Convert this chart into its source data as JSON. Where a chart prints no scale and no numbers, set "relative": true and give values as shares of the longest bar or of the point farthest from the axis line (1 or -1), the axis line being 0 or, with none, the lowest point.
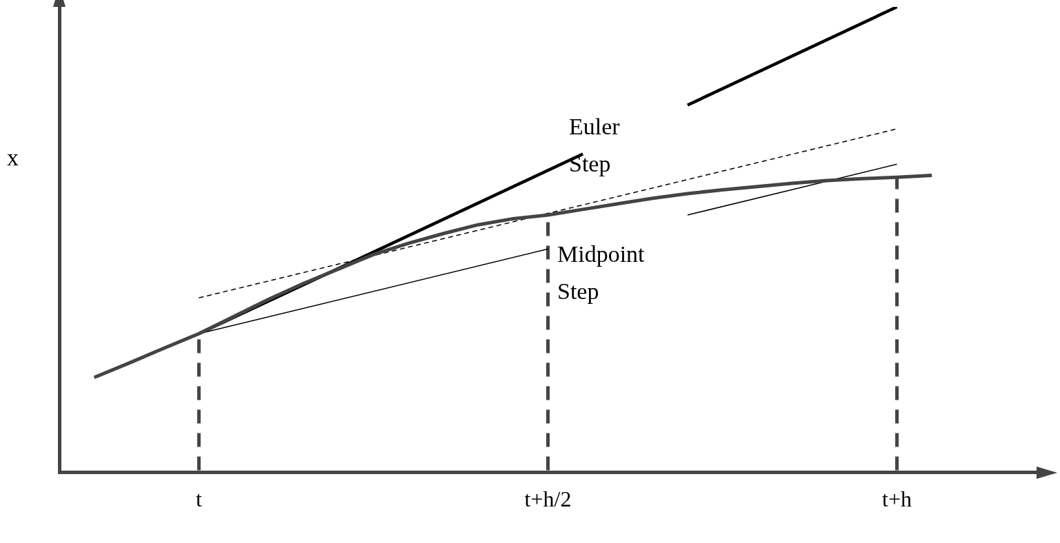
{
  "chart_data": {
    "type": "line",
    "relative": true,
    "ylabel": "x",
    "categories": [
      null,
      null,
      null,
      null,
      "t",
      null,
      null,
      null,
      null,
      null,
      null,
      null,
      null,
      null,
      "t+h/2",
      null,
      null,
      null,
      null,
      null,
      null,
      null,
      null,
      null,
      "t+h",
      null,
      null,
      null,
      null
    ],
    "grid": false,
    "legend": false,
    "marker": "none",
    "series": [
      {
        "color": "#444444",
        "line_style": "solid",
        "values": [
          null,
          0.204,
          0.235,
          0.267,
          0.298,
          0.335,
          0.372,
          0.406,
          0.437,
          0.468,
          0.492,
          0.513,
          0.532,
          0.545,
          0.553,
          0.565,
          0.577,
          0.589,
          0.599,
          0.607,
          0.614,
          0.621,
          0.627,
          0.631,
          0.634,
          0.638,
          null,
          null,
          null
        ]
      },
      {
        "color": "#000000",
        "line_style": "solid",
        "values": [
          null,
          null,
          null,
          null,
          0.298,
          null,
          null,
          null,
          null,
          null,
          null,
          null,
          null,
          null,
          null,
          0.684,
          null,
          null,
          null,
          null,
          null,
          null,
          null,
          null,
          null,
          null,
          null,
          null,
          null
        ]
      },
      {
        "color": "#000000",
        "line_style": "solid",
        "values": [
          null,
          null,
          null,
          null,
          null,
          null,
          null,
          null,
          null,
          null,
          null,
          null,
          null,
          null,
          null,
          null,
          null,
          null,
          0.789,
          null,
          null,
          null,
          null,
          null,
          1.0,
          null,
          null,
          null,
          null
        ]
      },
      {
        "color": "#000000",
        "line_style": "dashed",
        "values": [
          null,
          null,
          null,
          null,
          0.375,
          null,
          null,
          null,
          null,
          null,
          null,
          null,
          null,
          null,
          null,
          null,
          null,
          null,
          null,
          null,
          null,
          null,
          null,
          null,
          0.738,
          null,
          null,
          null,
          null
        ]
      },
      {
        "color": "#000000",
        "line_style": "solid",
        "values": [
          null,
          null,
          null,
          null,
          0.298,
          null,
          null,
          null,
          null,
          null,
          null,
          null,
          null,
          null,
          0.48,
          null,
          null,
          null,
          null,
          null,
          null,
          null,
          null,
          null,
          null,
          null,
          null,
          null,
          null
        ]
      },
      {
        "color": "#000000",
        "line_style": "solid",
        "values": [
          null,
          null,
          null,
          null,
          null,
          null,
          null,
          null,
          null,
          null,
          null,
          null,
          null,
          null,
          null,
          null,
          null,
          null,
          0.553,
          null,
          null,
          null,
          null,
          null,
          0.662,
          null,
          null,
          null,
          null
        ]
      }
    ],
    "ref_lines": [
      {
        "axis": "x",
        "value": "t",
        "color": "#444444",
        "line_style": "dashed"
      },
      {
        "axis": "x",
        "value": "t+h/2",
        "color": "#444444",
        "line_style": "dashed"
      },
      {
        "axis": "x",
        "value": "t+h",
        "color": "#444444",
        "line_style": "dashed"
      }
    ],
    "annotations": [
      "Euler Step",
      "Midpoint Step"
    ]
  }
}
